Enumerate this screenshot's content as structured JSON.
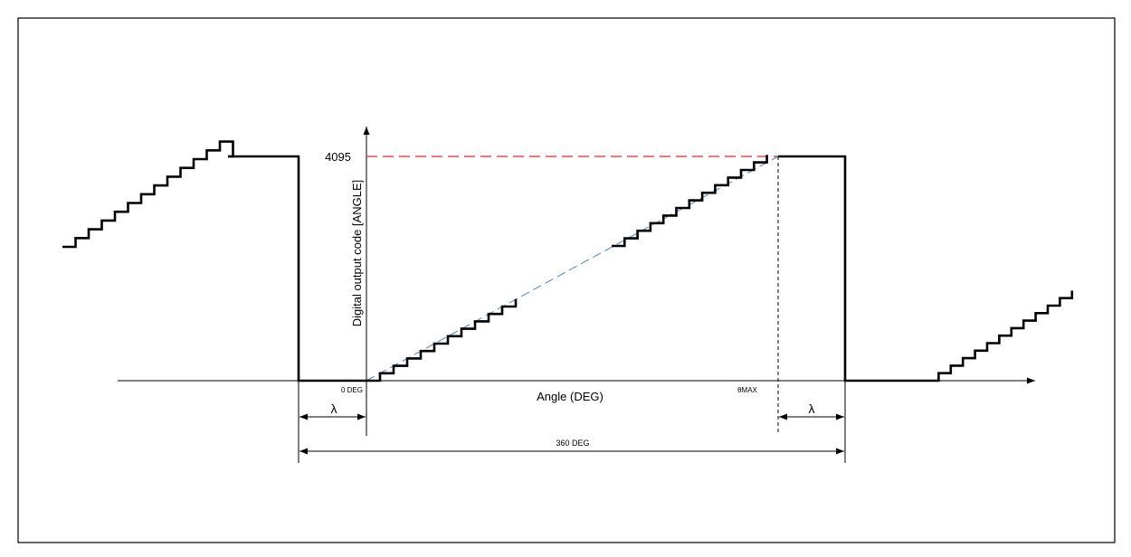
{
  "y_axis_label": "Digital output code [ANGLE]",
  "x_axis_label": "Angle (DEG)",
  "max_code_label": "4095",
  "zero_label": "0 DEG",
  "theta_max_label": "θMAX",
  "lambda_left_label": "λ",
  "lambda_right_label": "λ",
  "period_label": "360 DEG",
  "colors": {
    "waveform": "#000000",
    "max_code_line": "#e8262b",
    "ideal_transfer_line": "#4a86c8",
    "frame": "#000000"
  }
}
